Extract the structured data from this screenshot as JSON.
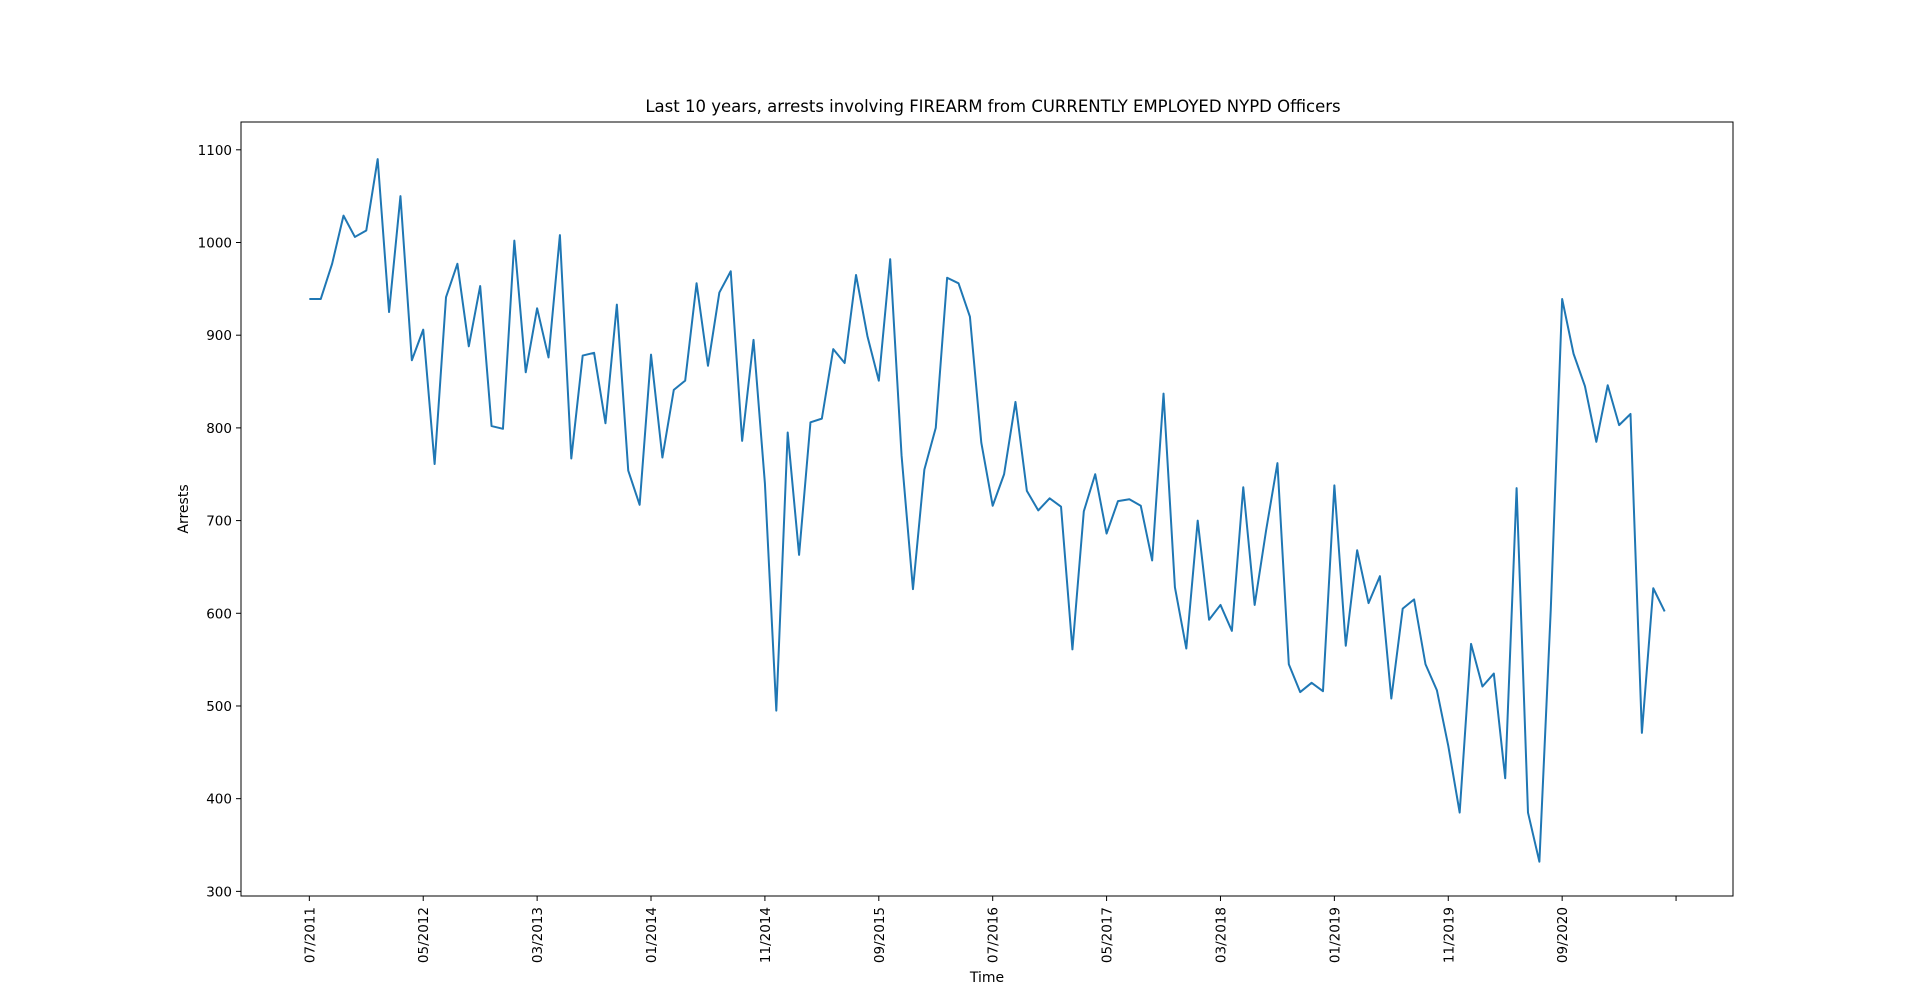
{
  "chart_data": {
    "type": "line",
    "title": "Last 10 years, arrests involving FIREARM from CURRENTLY EMPLOYED NYPD Officers",
    "xlabel": "Time",
    "ylabel": "Arrests",
    "ylim": [
      295,
      1130
    ],
    "yticks": [
      300,
      400,
      500,
      600,
      700,
      800,
      900,
      1000,
      1100
    ],
    "xticks": [
      {
        "label": "07/2011",
        "index": 0
      },
      {
        "label": "05/2012",
        "index": 10
      },
      {
        "label": "03/2013",
        "index": 20
      },
      {
        "label": "01/2014",
        "index": 30
      },
      {
        "label": "11/2014",
        "index": 40
      },
      {
        "label": "09/2015",
        "index": 50
      },
      {
        "label": "07/2016",
        "index": 60
      },
      {
        "label": "05/2017",
        "index": 70
      },
      {
        "label": "03/2018",
        "index": 80
      },
      {
        "label": "01/2019",
        "index": 90
      },
      {
        "label": "11/2019",
        "index": 100
      },
      {
        "label": "09/2020",
        "index": 110
      },
      {
        "label": "",
        "index": 120
      }
    ],
    "xlim_index": [
      -6,
      125
    ],
    "grid": false,
    "line_color": "#1f77b4",
    "series": [
      {
        "values": [
          939,
          939,
          977,
          1029,
          1006,
          1013,
          1090,
          925,
          1050,
          873,
          906,
          761,
          941,
          977,
          888,
          953,
          802,
          799,
          1002,
          860,
          929,
          876,
          1008,
          767,
          878,
          881,
          805,
          933,
          754,
          717,
          879,
          768,
          841,
          851,
          956,
          867,
          946,
          969,
          786,
          895,
          740,
          495,
          795,
          663,
          806,
          810,
          885,
          870,
          965,
          899,
          851,
          982,
          770,
          626,
          755,
          800,
          962,
          956,
          920,
          784,
          716,
          750,
          828,
          732,
          711,
          724,
          715,
          561,
          710,
          750,
          686,
          721,
          723,
          716,
          657,
          837,
          628,
          562,
          700,
          593,
          609,
          581,
          736,
          609,
          689,
          762,
          545,
          515,
          525,
          516,
          738,
          565,
          668,
          611,
          640,
          508,
          605,
          615,
          545,
          517,
          457,
          385,
          567,
          521,
          535,
          422,
          735,
          385,
          332,
          604,
          939,
          880,
          845,
          785,
          846,
          803,
          815,
          471,
          627,
          602
        ]
      }
    ]
  }
}
